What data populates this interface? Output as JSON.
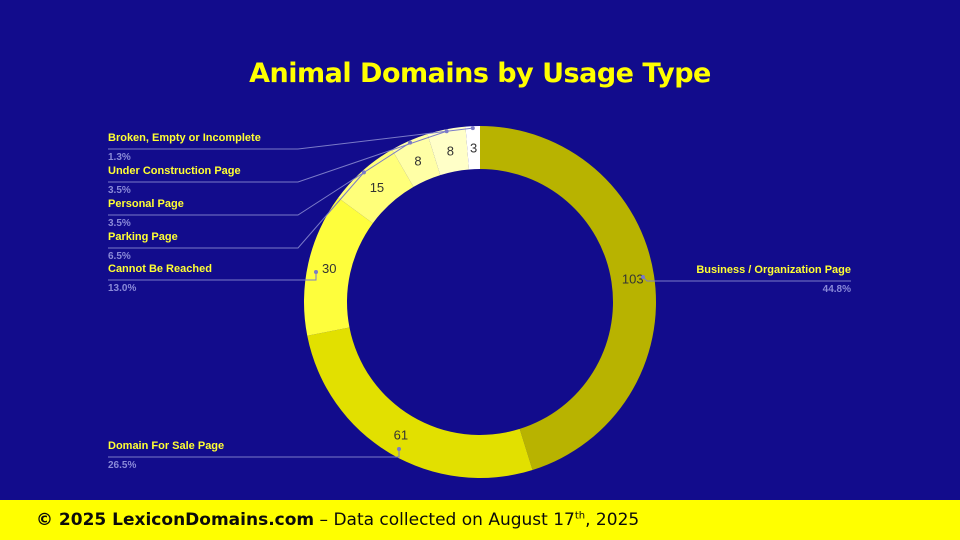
{
  "title": "Animal Domains by Usage Type",
  "footer": {
    "copyright": "© 2025 LexiconDomains.com",
    "dash": " – ",
    "collected": "Data collected on August 17",
    "suffix": "th",
    "year": ", 2025"
  },
  "chart_data": {
    "type": "pie",
    "donut": true,
    "title": "Animal Domains by Usage Type",
    "slices": [
      {
        "label": "Business / Organization Page",
        "value": 103,
        "percent": "44.8%",
        "color": "#b8b300"
      },
      {
        "label": "Domain For Sale Page",
        "value": 61,
        "percent": "26.5%",
        "color": "#e2e000"
      },
      {
        "label": "Cannot Be Reached",
        "value": 30,
        "percent": "13.0%",
        "color": "#fefe3c"
      },
      {
        "label": "Parking Page",
        "value": 15,
        "percent": "6.5%",
        "color": "#ffff7a"
      },
      {
        "label": "Personal Page",
        "value": 8,
        "percent": "3.5%",
        "color": "#ffffa6"
      },
      {
        "label": "Under Construction Page",
        "value": 8,
        "percent": "3.5%",
        "color": "#ffffc8"
      },
      {
        "label": "Broken, Empty or Incomplete",
        "value": 3,
        "percent": "1.3%",
        "color": "#ffffff"
      }
    ],
    "legend": "leader-lines",
    "label_color": "#ffff33",
    "percent_color": "#8a8ad8"
  }
}
